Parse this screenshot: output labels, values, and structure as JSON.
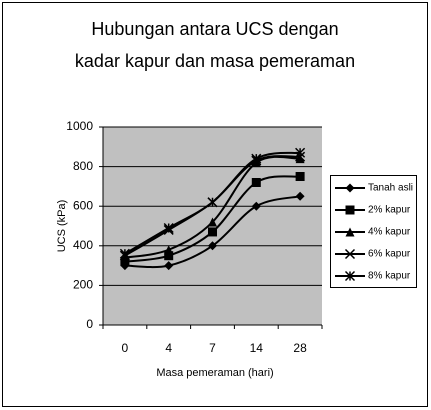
{
  "chart_data": {
    "type": "line",
    "title": [
      "Hubungan antara UCS dengan",
      "kadar kapur dan masa pemeraman"
    ],
    "x_label": "Masa pemeraman (hari)",
    "y_label": "UCS (kPa)",
    "categories": [
      "0",
      "4",
      "7",
      "14",
      "28"
    ],
    "ylim": [
      0,
      1000
    ],
    "yticks": [
      0,
      200,
      400,
      600,
      800,
      1000
    ],
    "grid": true,
    "legend": "right",
    "smooth": true,
    "series": [
      {
        "name": "Tanah asli",
        "color": "#000000",
        "marker": "diamond",
        "values": [
          300,
          300,
          400,
          600,
          650
        ]
      },
      {
        "name": "2% kapur",
        "color": "#000000",
        "marker": "square",
        "values": [
          320,
          350,
          470,
          720,
          750
        ]
      },
      {
        "name": "4% kapur",
        "color": "#000000",
        "marker": "triangle",
        "values": [
          340,
          380,
          520,
          820,
          840
        ]
      },
      {
        "name": "6% kapur",
        "color": "#000000",
        "marker": "x",
        "values": [
          350,
          480,
          620,
          830,
          850
        ]
      },
      {
        "name": "8% kapur",
        "color": "#000000",
        "marker": "asterisk",
        "values": [
          360,
          490,
          620,
          840,
          870
        ]
      }
    ]
  }
}
